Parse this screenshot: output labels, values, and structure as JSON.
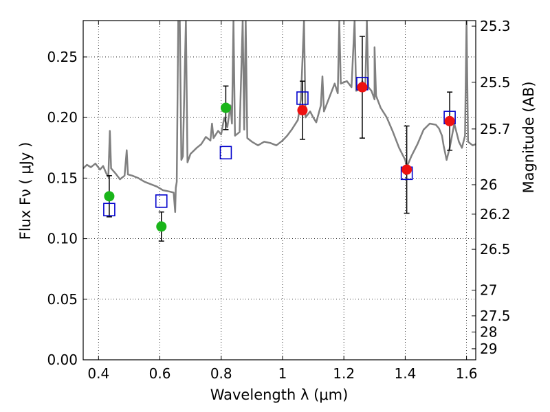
{
  "chart_data": {
    "type": "scatter",
    "xlabel": "Wavelength  λ (μm)",
    "ylabel": "Flux  Fν  ( μJy )",
    "y2label": "Magnitude (AB)",
    "xlim": [
      0.35,
      1.63
    ],
    "ylim": [
      0.0,
      0.28
    ],
    "xticks": [
      0.4,
      0.6,
      0.8,
      1.0,
      1.2,
      1.4,
      1.6
    ],
    "xtick_labels": [
      "0.4",
      "0.6",
      "0.8",
      "1",
      "1.2",
      "1.4",
      "1.6"
    ],
    "yticks": [
      0.0,
      0.05,
      0.1,
      0.15,
      0.2,
      0.25
    ],
    "ytick_labels": [
      "0.00",
      "0.05",
      "0.10",
      "0.15",
      "0.20",
      "0.25"
    ],
    "magnitude_ticks": [
      25.3,
      25.5,
      25.7,
      26,
      26.2,
      26.5,
      27,
      27.5,
      28,
      29
    ],
    "magnitude_labels": [
      "25.3",
      "25.5",
      "25.7",
      "26",
      "26.2",
      "26.5",
      "27",
      "27.5",
      "28",
      "29"
    ],
    "grid": true,
    "colors": {
      "model": "#808080",
      "green_points": "#1ab51a",
      "red_points": "#ee1111",
      "model_squares": "#0000cc",
      "errorbars": "#000000"
    },
    "series": [
      {
        "kind": "line",
        "values": [
          [
            0.35,
            0.158
          ],
          [
            0.362,
            0.161
          ],
          [
            0.375,
            0.159
          ],
          [
            0.39,
            0.162
          ],
          [
            0.405,
            0.157
          ],
          [
            0.415,
            0.16
          ],
          [
            0.425,
            0.154
          ],
          [
            0.432,
            0.151
          ],
          [
            0.437,
            0.189
          ],
          [
            0.441,
            0.158
          ],
          [
            0.455,
            0.154
          ],
          [
            0.47,
            0.149
          ],
          [
            0.485,
            0.152
          ],
          [
            0.492,
            0.173
          ],
          [
            0.496,
            0.153
          ],
          [
            0.51,
            0.152
          ],
          [
            0.53,
            0.15
          ],
          [
            0.55,
            0.147
          ],
          [
            0.57,
            0.145
          ],
          [
            0.59,
            0.143
          ],
          [
            0.61,
            0.14
          ],
          [
            0.63,
            0.139
          ],
          [
            0.645,
            0.138
          ],
          [
            0.65,
            0.122
          ],
          [
            0.652,
            0.142
          ],
          [
            0.655,
            0.147
          ],
          [
            0.66,
            0.28
          ],
          [
            0.665,
            0.28
          ],
          [
            0.67,
            0.165
          ],
          [
            0.675,
            0.168
          ],
          [
            0.685,
            0.28
          ],
          [
            0.69,
            0.163
          ],
          [
            0.7,
            0.17
          ],
          [
            0.72,
            0.175
          ],
          [
            0.735,
            0.178
          ],
          [
            0.75,
            0.184
          ],
          [
            0.765,
            0.181
          ],
          [
            0.77,
            0.195
          ],
          [
            0.775,
            0.183
          ],
          [
            0.79,
            0.189
          ],
          [
            0.8,
            0.186
          ],
          [
            0.81,
            0.2
          ],
          [
            0.82,
            0.192
          ],
          [
            0.83,
            0.21
          ],
          [
            0.835,
            0.195
          ],
          [
            0.84,
            0.28
          ],
          [
            0.845,
            0.185
          ],
          [
            0.86,
            0.188
          ],
          [
            0.87,
            0.28
          ],
          [
            0.875,
            0.19
          ],
          [
            0.88,
            0.28
          ],
          [
            0.885,
            0.183
          ],
          [
            0.9,
            0.18
          ],
          [
            0.92,
            0.177
          ],
          [
            0.94,
            0.18
          ],
          [
            0.96,
            0.179
          ],
          [
            0.98,
            0.177
          ],
          [
            1.0,
            0.181
          ],
          [
            1.015,
            0.185
          ],
          [
            1.03,
            0.19
          ],
          [
            1.05,
            0.198
          ],
          [
            1.06,
            0.215
          ],
          [
            1.07,
            0.28
          ],
          [
            1.075,
            0.2
          ],
          [
            1.09,
            0.205
          ],
          [
            1.1,
            0.2
          ],
          [
            1.11,
            0.196
          ],
          [
            1.125,
            0.21
          ],
          [
            1.13,
            0.234
          ],
          [
            1.135,
            0.205
          ],
          [
            1.15,
            0.215
          ],
          [
            1.17,
            0.228
          ],
          [
            1.18,
            0.22
          ],
          [
            1.185,
            0.28
          ],
          [
            1.19,
            0.228
          ],
          [
            1.21,
            0.23
          ],
          [
            1.225,
            0.225
          ],
          [
            1.235,
            0.28
          ],
          [
            1.24,
            0.222
          ],
          [
            1.255,
            0.224
          ],
          [
            1.26,
            0.23
          ],
          [
            1.27,
            0.225
          ],
          [
            1.275,
            0.28
          ],
          [
            1.28,
            0.225
          ],
          [
            1.29,
            0.222
          ],
          [
            1.3,
            0.215
          ],
          [
            1.3,
            0.258
          ],
          [
            1.305,
            0.218
          ],
          [
            1.32,
            0.208
          ],
          [
            1.34,
            0.2
          ],
          [
            1.36,
            0.188
          ],
          [
            1.38,
            0.175
          ],
          [
            1.4,
            0.165
          ],
          [
            1.405,
            0.159
          ],
          [
            1.42,
            0.168
          ],
          [
            1.44,
            0.178
          ],
          [
            1.46,
            0.19
          ],
          [
            1.48,
            0.195
          ],
          [
            1.5,
            0.194
          ],
          [
            1.51,
            0.191
          ],
          [
            1.52,
            0.185
          ],
          [
            1.525,
            0.177
          ],
          [
            1.535,
            0.165
          ],
          [
            1.545,
            0.175
          ],
          [
            1.555,
            0.188
          ],
          [
            1.56,
            0.195
          ],
          [
            1.575,
            0.18
          ],
          [
            1.585,
            0.175
          ],
          [
            1.595,
            0.185
          ],
          [
            1.6,
            0.28
          ],
          [
            1.605,
            0.18
          ],
          [
            1.62,
            0.177
          ],
          [
            1.63,
            0.178
          ]
        ]
      },
      {
        "kind": "points",
        "x": [
          0.435,
          0.605,
          0.815
        ],
        "y": [
          0.135,
          0.11,
          0.208
        ],
        "err": [
          0.017,
          0.012,
          0.018
        ]
      },
      {
        "kind": "points",
        "x": [
          1.065,
          1.26,
          1.405,
          1.545
        ],
        "y": [
          0.206,
          0.225,
          0.157,
          0.197
        ],
        "err": [
          0.024,
          0.042,
          0.036,
          0.024
        ]
      },
      {
        "kind": "squares",
        "x": [
          0.435,
          0.605,
          0.815,
          1.065,
          1.26,
          1.405,
          1.545
        ],
        "y": [
          0.124,
          0.131,
          0.171,
          0.216,
          0.228,
          0.154,
          0.2
        ]
      }
    ]
  }
}
